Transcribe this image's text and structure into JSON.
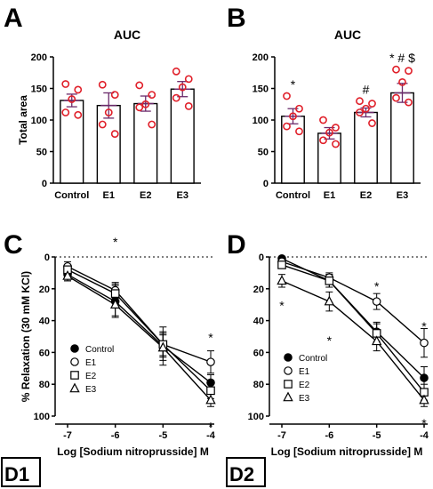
{
  "panels": {
    "A": "A",
    "B": "B",
    "C": "C",
    "D": "D",
    "D1": "D1",
    "D2": "D2"
  },
  "chart_data": [
    {
      "id": "A",
      "type": "bar",
      "title": "AUC",
      "ylabel": "Total area",
      "categories": [
        "Control",
        "E1",
        "E2",
        "E3"
      ],
      "yticks": [
        "0",
        "50",
        "100",
        "150",
        "200"
      ],
      "ylim": [
        0,
        200
      ],
      "values": [
        131,
        123,
        126,
        149
      ],
      "sem": [
        10,
        20,
        12,
        12
      ],
      "points": [
        [
          157,
          148,
          133,
          112,
          108
        ],
        [
          156,
          140,
          112,
          93,
          78
        ],
        [
          155,
          140,
          125,
          120,
          93
        ],
        [
          177,
          165,
          152,
          135,
          122
        ]
      ],
      "annotations": [
        "",
        "",
        "",
        ""
      ]
    },
    {
      "id": "B",
      "type": "bar",
      "title": "AUC",
      "ylabel": "",
      "categories": [
        "Control",
        "E1",
        "E2",
        "E3"
      ],
      "yticks": [
        "0",
        "50",
        "100",
        "150",
        "200"
      ],
      "ylim": [
        0,
        200
      ],
      "values": [
        106,
        79,
        112,
        143
      ],
      "sem": [
        12,
        9,
        7,
        15
      ],
      "points": [
        [
          138,
          118,
          106,
          90,
          82
        ],
        [
          100,
          88,
          80,
          68,
          62
        ],
        [
          130,
          126,
          118,
          112,
          95
        ],
        [
          180,
          178,
          160,
          135,
          128
        ]
      ],
      "annotations": [
        "*",
        "",
        "#",
        "* # $"
      ]
    },
    {
      "id": "C",
      "type": "line",
      "ylabel": "% Relaxation (30 mM KCl)",
      "xlabel": "Log [Sodium nitroprusside] M",
      "xticks": [
        "-7",
        "-6",
        "-5",
        "-4"
      ],
      "yticks": [
        "0",
        "20",
        "40",
        "60",
        "80",
        "100"
      ],
      "x": [
        -7,
        -6,
        -5,
        -4
      ],
      "ylim": [
        0,
        100
      ],
      "series": [
        {
          "name": "Control",
          "marker": "filled-circle",
          "values": [
            11,
            28,
            56,
            79
          ],
          "err": [
            4,
            10,
            12,
            5
          ]
        },
        {
          "name": "E1",
          "marker": "open-circle",
          "values": [
            6,
            21,
            55,
            66
          ],
          "err": [
            3,
            5,
            7,
            7
          ]
        },
        {
          "name": "E2",
          "marker": "open-square",
          "values": [
            8,
            23,
            55,
            84
          ],
          "err": [
            3,
            6,
            8,
            5
          ]
        },
        {
          "name": "E3",
          "marker": "open-triangle",
          "values": [
            12,
            30,
            57,
            90
          ],
          "err": [
            3,
            7,
            8,
            4
          ]
        }
      ],
      "stars": [
        {
          "x": -6,
          "y": -10,
          "text": "*"
        },
        {
          "x": -4,
          "y": 50,
          "text": "*"
        },
        {
          "x": -4,
          "y": 106,
          "text": "*"
        }
      ]
    },
    {
      "id": "D",
      "type": "line",
      "ylabel": "",
      "xlabel": "Log [Sodium nitroprusside] M",
      "xticks": [
        "-7",
        "-6",
        "-5",
        "-4"
      ],
      "yticks": [
        "0",
        "20",
        "40",
        "60",
        "80",
        "100"
      ],
      "x": [
        -7,
        -6,
        -5,
        -4
      ],
      "ylim": [
        0,
        100
      ],
      "series": [
        {
          "name": "Control",
          "marker": "filled-circle",
          "values": [
            1,
            15,
            47,
            76
          ],
          "err": [
            1,
            4,
            6,
            7
          ]
        },
        {
          "name": "E1",
          "marker": "open-circle",
          "values": [
            3,
            13,
            28,
            54
          ],
          "err": [
            2,
            3,
            5,
            9
          ]
        },
        {
          "name": "E2",
          "marker": "open-square",
          "values": [
            5,
            15,
            48,
            85
          ],
          "err": [
            2,
            4,
            6,
            5
          ]
        },
        {
          "name": "E3",
          "marker": "open-triangle",
          "values": [
            15,
            28,
            53,
            90
          ],
          "err": [
            4,
            6,
            6,
            4
          ]
        }
      ],
      "stars": [
        {
          "x": -7,
          "y": 30,
          "text": "*"
        },
        {
          "x": -6,
          "y": 52,
          "text": "*"
        },
        {
          "x": -5,
          "y": 18,
          "text": "*"
        },
        {
          "x": -4,
          "y": 43,
          "text": "*"
        },
        {
          "x": -4,
          "y": 104,
          "text": "*"
        }
      ]
    }
  ]
}
